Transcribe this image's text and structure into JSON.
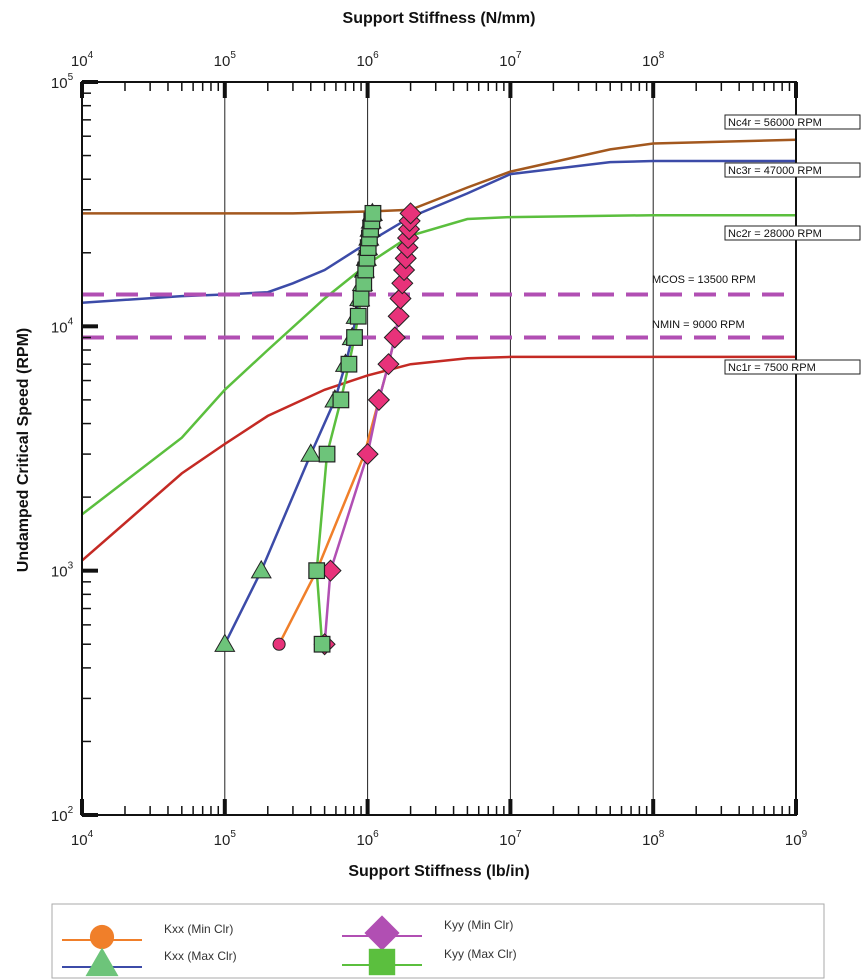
{
  "chart_data": {
    "type": "line",
    "title": "",
    "xlabel": "Support Stiffness (lb/in)",
    "x2label": "Support Stiffness (N/mm)",
    "ylabel": "Undamped Critical Speed (RPM)",
    "x_scale": "log",
    "y_scale": "log",
    "xlim": [
      10000,
      1000000000
    ],
    "ylim": [
      100,
      100000
    ],
    "x_ticks": [
      {
        "base": "10",
        "exp": "4",
        "value": 10000
      },
      {
        "base": "10",
        "exp": "5",
        "value": 100000
      },
      {
        "base": "10",
        "exp": "6",
        "value": 1000000
      },
      {
        "base": "10",
        "exp": "7",
        "value": 10000000
      },
      {
        "base": "10",
        "exp": "8",
        "value": 100000000
      },
      {
        "base": "10",
        "exp": "9",
        "value": 1000000000
      }
    ],
    "x2_ticks": [
      {
        "base": "10",
        "exp": "4",
        "value": 10000
      },
      {
        "base": "10",
        "exp": "5",
        "value": 100000
      },
      {
        "base": "10",
        "exp": "6",
        "value": 1000000
      },
      {
        "base": "10",
        "exp": "7",
        "value": 10000000
      },
      {
        "base": "10",
        "exp": "8",
        "value": 100000000
      }
    ],
    "y_ticks": [
      {
        "base": "10",
        "exp": "2",
        "value": 100
      },
      {
        "base": "10",
        "exp": "3",
        "value": 1000
      },
      {
        "base": "10",
        "exp": "4",
        "value": 10000
      },
      {
        "base": "10",
        "exp": "5",
        "value": 100000
      }
    ],
    "grid": "vertical major lines only",
    "critical_speed_lines": [
      {
        "label": "Nc4r = 56000 RPM",
        "color": "#a3581e",
        "points": [
          [
            10000,
            29000
          ],
          [
            300000,
            29000
          ],
          [
            1000000,
            29500
          ],
          [
            2000000,
            30000
          ],
          [
            5000000,
            37000
          ],
          [
            10000000,
            43000
          ],
          [
            50000000,
            53000
          ],
          [
            100000000,
            56000
          ],
          [
            1000000000,
            58000
          ]
        ]
      },
      {
        "label": "Nc3r = 47000 RPM",
        "color": "#3c4ba8",
        "points": [
          [
            10000,
            12500
          ],
          [
            50000,
            13300
          ],
          [
            100000,
            13500
          ],
          [
            200000,
            13800
          ],
          [
            300000,
            15000
          ],
          [
            500000,
            17000
          ],
          [
            1000000,
            22000
          ],
          [
            2000000,
            28000
          ],
          [
            5000000,
            35000
          ],
          [
            10000000,
            42000
          ],
          [
            50000000,
            47000
          ],
          [
            100000000,
            47500
          ],
          [
            1000000000,
            47500
          ]
        ]
      },
      {
        "label": "Nc2r = 28000 RPM",
        "color": "#5bbf3e",
        "points": [
          [
            10000,
            1700
          ],
          [
            50000,
            3500
          ],
          [
            100000,
            5500
          ],
          [
            200000,
            8000
          ],
          [
            500000,
            13000
          ],
          [
            1000000,
            18000
          ],
          [
            2000000,
            23500
          ],
          [
            5000000,
            27500
          ],
          [
            10000000,
            28000
          ],
          [
            100000000,
            28500
          ],
          [
            1000000000,
            28500
          ]
        ]
      },
      {
        "label": "Nc1r = 7500 RPM",
        "color": "#c42a24",
        "points": [
          [
            10000,
            1100
          ],
          [
            50000,
            2500
          ],
          [
            100000,
            3300
          ],
          [
            200000,
            4300
          ],
          [
            500000,
            5500
          ],
          [
            1000000,
            6300
          ],
          [
            2000000,
            7000
          ],
          [
            5000000,
            7400
          ],
          [
            10000000,
            7500
          ],
          [
            100000000,
            7500
          ],
          [
            1000000000,
            7500
          ]
        ]
      }
    ],
    "reference_lines": [
      {
        "label": "MCOS = 13500 RPM",
        "value": 13500,
        "color": "#b14fb3",
        "style": "dashed"
      },
      {
        "label": "NMIN = 9000 RPM",
        "value": 9000,
        "color": "#b14fb3",
        "style": "dashed"
      }
    ],
    "series": [
      {
        "name": "Kxx (Min Clr)",
        "line_color": "#f07f2a",
        "marker": "circle",
        "marker_color": "#e8327a",
        "points": [
          [
            240000,
            500
          ],
          [
            440000,
            1000
          ],
          [
            950000,
            3000
          ],
          [
            1200000,
            5000
          ],
          [
            1400000,
            7000
          ],
          [
            1550000,
            9000
          ],
          [
            1650000,
            11000
          ],
          [
            1700000,
            13000
          ],
          [
            1750000,
            15000
          ],
          [
            1800000,
            17000
          ],
          [
            1850000,
            19000
          ],
          [
            1900000,
            21000
          ],
          [
            1920000,
            23000
          ],
          [
            1950000,
            25000
          ],
          [
            1970000,
            27000
          ],
          [
            2000000,
            29000
          ]
        ],
        "show_markers": false
      },
      {
        "name": "Kxx (Max Clr)",
        "line_color": "#3c4ba8",
        "marker": "triangle",
        "marker_color": "#6dc47a",
        "points": [
          [
            100000,
            500
          ],
          [
            180000,
            1000
          ],
          [
            400000,
            3000
          ],
          [
            590000,
            5000
          ],
          [
            700000,
            7000
          ],
          [
            780000,
            9000
          ],
          [
            830000,
            11000
          ],
          [
            880000,
            13000
          ],
          [
            920000,
            15000
          ],
          [
            950000,
            17000
          ],
          [
            980000,
            19000
          ],
          [
            1000000,
            21000
          ],
          [
            1020000,
            23000
          ],
          [
            1040000,
            25000
          ],
          [
            1060000,
            27000
          ],
          [
            1080000,
            29000
          ]
        ],
        "show_markers": true
      },
      {
        "name": "Kyy (Min Clr)",
        "line_color": "#b14fb3",
        "marker": "diamond",
        "marker_color": "#e8327a",
        "points": [
          [
            500000,
            500
          ],
          [
            550000,
            1000
          ],
          [
            1000000,
            3000
          ],
          [
            1200000,
            5000
          ],
          [
            1400000,
            7000
          ],
          [
            1550000,
            9000
          ],
          [
            1650000,
            11000
          ],
          [
            1700000,
            13000
          ],
          [
            1750000,
            15000
          ],
          [
            1800000,
            17000
          ],
          [
            1850000,
            19000
          ],
          [
            1900000,
            21000
          ],
          [
            1920000,
            23000
          ],
          [
            1950000,
            25000
          ],
          [
            1970000,
            27000
          ],
          [
            2000000,
            29000
          ]
        ],
        "show_markers": true
      },
      {
        "name": "Kyy (Max Clr)",
        "line_color": "#5bbf3e",
        "marker": "square",
        "marker_color": "#6dc47a",
        "points": [
          [
            480000,
            500
          ],
          [
            440000,
            1000
          ],
          [
            520000,
            3000
          ],
          [
            650000,
            5000
          ],
          [
            740000,
            7000
          ],
          [
            810000,
            9000
          ],
          [
            860000,
            11000
          ],
          [
            900000,
            13000
          ],
          [
            940000,
            15000
          ],
          [
            970000,
            17000
          ],
          [
            990000,
            19000
          ],
          [
            1010000,
            21000
          ],
          [
            1030000,
            23000
          ],
          [
            1050000,
            25000
          ],
          [
            1070000,
            27000
          ],
          [
            1090000,
            29000
          ]
        ],
        "show_markers": true
      }
    ],
    "legend": {
      "placement": "bottom",
      "columns": 2
    }
  }
}
